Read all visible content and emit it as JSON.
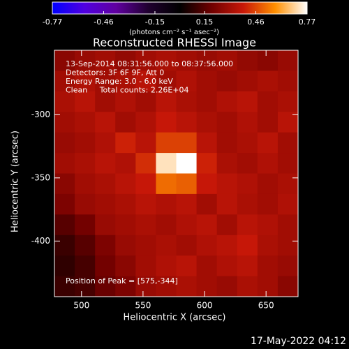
{
  "chart_data": {
    "type": "heatmap",
    "title": "Reconstructed RHESSI Image",
    "x_label": "Heliocentric X (arcsec)",
    "y_label": "Heliocentric Y (arcsec)",
    "annotations": [
      "13-Sep-2014 08:31:56.000 to 08:37:56.000",
      "Detectors: 3F 6F 9F, Att 0",
      "Energy Range: 3.0 - 6.0 keV",
      "Clean     Total counts: 2.26E+04"
    ],
    "peak_label": "Position of Peak = [575,-344]",
    "footer": "17-May-2022 04:12",
    "colorbar_label": "(photons cm⁻² s⁻¹ asec⁻²)",
    "zlim": [
      -0.77,
      0.77
    ],
    "zticks": [
      -0.77,
      -0.46,
      -0.15,
      0.15,
      0.46,
      0.77
    ],
    "colorscale": [
      "#0000ff",
      "#5000e0",
      "#6000a0",
      "#200030",
      "#000000",
      "#700000",
      "#c81808",
      "#ff9000",
      "#ffffff"
    ],
    "xlim": [
      478,
      676
    ],
    "ylim": [
      -444,
      -249
    ],
    "xticks": [
      500,
      550,
      600,
      650
    ],
    "yticks": [
      -300,
      -350,
      -400
    ],
    "z": [
      [
        0.25,
        0.28,
        0.3,
        0.27,
        0.3,
        0.32,
        0.3,
        0.28,
        0.3,
        0.27,
        0.25,
        0.28
      ],
      [
        0.3,
        0.33,
        0.3,
        0.32,
        0.35,
        0.3,
        0.33,
        0.3,
        0.28,
        0.3,
        0.32,
        0.3
      ],
      [
        0.32,
        0.35,
        0.3,
        0.33,
        0.3,
        0.35,
        0.32,
        0.3,
        0.33,
        0.35,
        0.3,
        0.32
      ],
      [
        0.3,
        0.32,
        0.35,
        0.3,
        0.33,
        0.38,
        0.35,
        0.32,
        0.3,
        0.33,
        0.3,
        0.35
      ],
      [
        0.28,
        0.3,
        0.33,
        0.4,
        0.35,
        0.45,
        0.45,
        0.35,
        0.3,
        0.32,
        0.35,
        0.3
      ],
      [
        0.3,
        0.32,
        0.35,
        0.33,
        0.42,
        0.72,
        0.77,
        0.4,
        0.32,
        0.3,
        0.33,
        0.3
      ],
      [
        0.25,
        0.3,
        0.32,
        0.35,
        0.38,
        0.52,
        0.5,
        0.38,
        0.35,
        0.33,
        0.3,
        0.32
      ],
      [
        0.22,
        0.28,
        0.3,
        0.32,
        0.35,
        0.33,
        0.35,
        0.3,
        0.35,
        0.32,
        0.3,
        0.33
      ],
      [
        0.15,
        0.2,
        0.28,
        0.3,
        0.32,
        0.3,
        0.33,
        0.35,
        0.3,
        0.35,
        0.33,
        0.3
      ],
      [
        0.1,
        0.15,
        0.22,
        0.28,
        0.3,
        0.32,
        0.3,
        0.33,
        0.35,
        0.38,
        0.32,
        0.3
      ],
      [
        0.08,
        0.12,
        0.2,
        0.25,
        0.3,
        0.33,
        0.35,
        0.3,
        0.33,
        0.35,
        0.3,
        0.28
      ],
      [
        0.1,
        0.12,
        0.18,
        0.22,
        0.28,
        0.3,
        0.32,
        0.3,
        0.28,
        0.32,
        0.3,
        0.25
      ]
    ]
  }
}
